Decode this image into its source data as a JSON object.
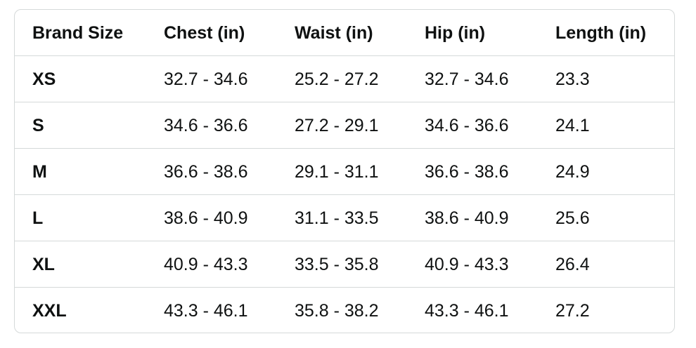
{
  "table": {
    "header": [
      "Brand Size",
      "Chest (in)",
      "Waist (in)",
      "Hip (in)",
      "Length (in)"
    ],
    "rows": [
      [
        "XS",
        "32.7 - 34.6",
        "25.2 - 27.2",
        "32.7 - 34.6",
        "23.3"
      ],
      [
        "S",
        "34.6 - 36.6",
        "27.2 - 29.1",
        "34.6 - 36.6",
        "24.1"
      ],
      [
        "M",
        "36.6 - 38.6",
        "29.1 - 31.1",
        "36.6 - 38.6",
        "24.9"
      ],
      [
        "L",
        "38.6 - 40.9",
        "31.1 - 33.5",
        "38.6 - 40.9",
        "25.6"
      ],
      [
        "XL",
        "40.9 - 43.3",
        "33.5 - 35.8",
        "40.9 - 43.3",
        "26.4"
      ],
      [
        "XXL",
        "43.3 - 46.1",
        "35.8 - 38.2",
        "43.3 - 46.1",
        "27.2"
      ]
    ]
  }
}
